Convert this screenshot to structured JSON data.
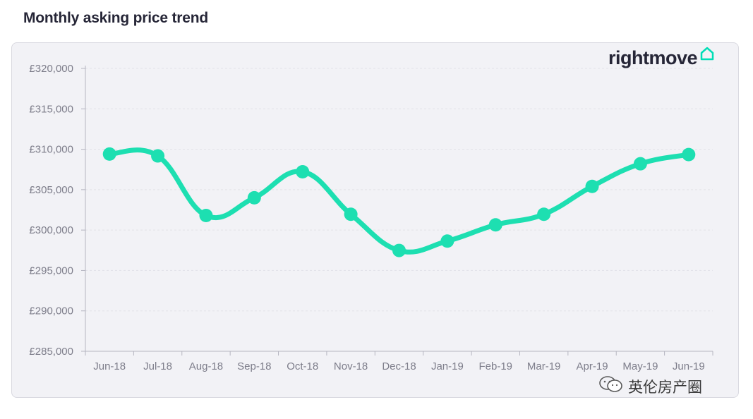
{
  "header": {
    "title": "Monthly asking price trend"
  },
  "brand": {
    "name": "rightmove",
    "icon": "house-icon",
    "accent_color": "#00deb6"
  },
  "watermark": {
    "text": "英伦房产圈",
    "icon": "wechat-icon"
  },
  "colors": {
    "line": "#1ddfb1",
    "card_bg": "#f2f2f6",
    "axis_text": "#7d7d8a",
    "grid": "#e1e1e8"
  },
  "chart_data": {
    "type": "line",
    "title": "Monthly asking price trend",
    "xlabel": "",
    "ylabel": "",
    "categories": [
      "Jun-18",
      "Jul-18",
      "Aug-18",
      "Sep-18",
      "Oct-18",
      "Nov-18",
      "Dec-18",
      "Jan-19",
      "Feb-19",
      "Mar-19",
      "Apr-19",
      "May-19",
      "Jun-19"
    ],
    "series": [
      {
        "values": [
          309408,
          309172,
          301803,
          303997,
          307213,
          301952,
          297475,
          298635,
          300644,
          301953,
          305403,
          308202,
          309343
        ]
      }
    ],
    "ylim": [
      285000,
      320000
    ],
    "yticks": [
      285000,
      290000,
      295000,
      300000,
      305000,
      310000,
      315000,
      320000
    ],
    "ytick_labels": [
      "£285,000",
      "£290,000",
      "£295,000",
      "£300,000",
      "£305,000",
      "£310,000",
      "£315,000",
      "£320,000"
    ],
    "grid": true,
    "legend": false
  }
}
